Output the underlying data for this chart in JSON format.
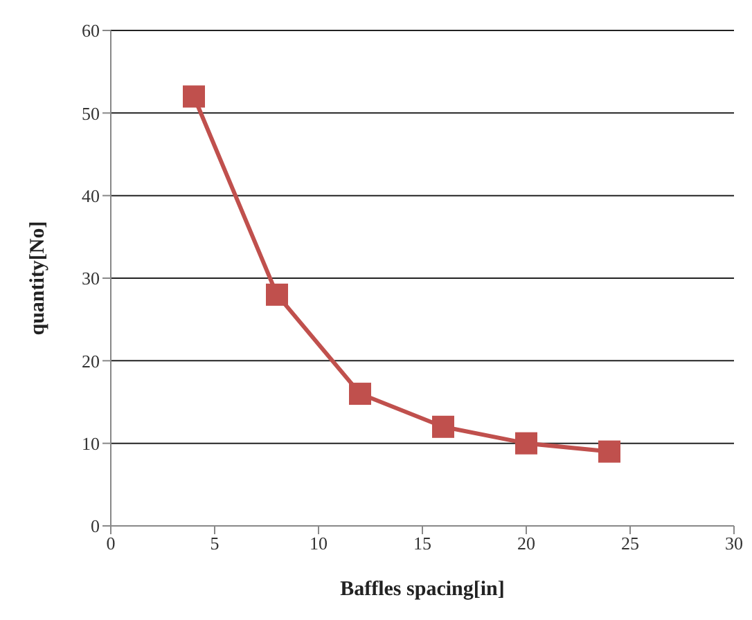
{
  "chart_data": {
    "type": "line",
    "xlabel": "Baffles spacing[in]",
    "ylabel": "quantity[No]",
    "x": [
      4,
      8,
      12,
      16,
      20,
      24
    ],
    "series": [
      {
        "color": "#c0504d",
        "values": [
          52,
          28,
          16,
          12,
          10,
          9
        ]
      }
    ],
    "xlim": [
      0,
      30
    ],
    "xticks": [
      0,
      5,
      10,
      15,
      20,
      25,
      30
    ],
    "ylim": [
      0,
      60
    ],
    "yticks": [
      0,
      10,
      20,
      30,
      40,
      50,
      60
    ],
    "grid": "y",
    "marker": "square",
    "line_style": "solid",
    "legend": false
  }
}
